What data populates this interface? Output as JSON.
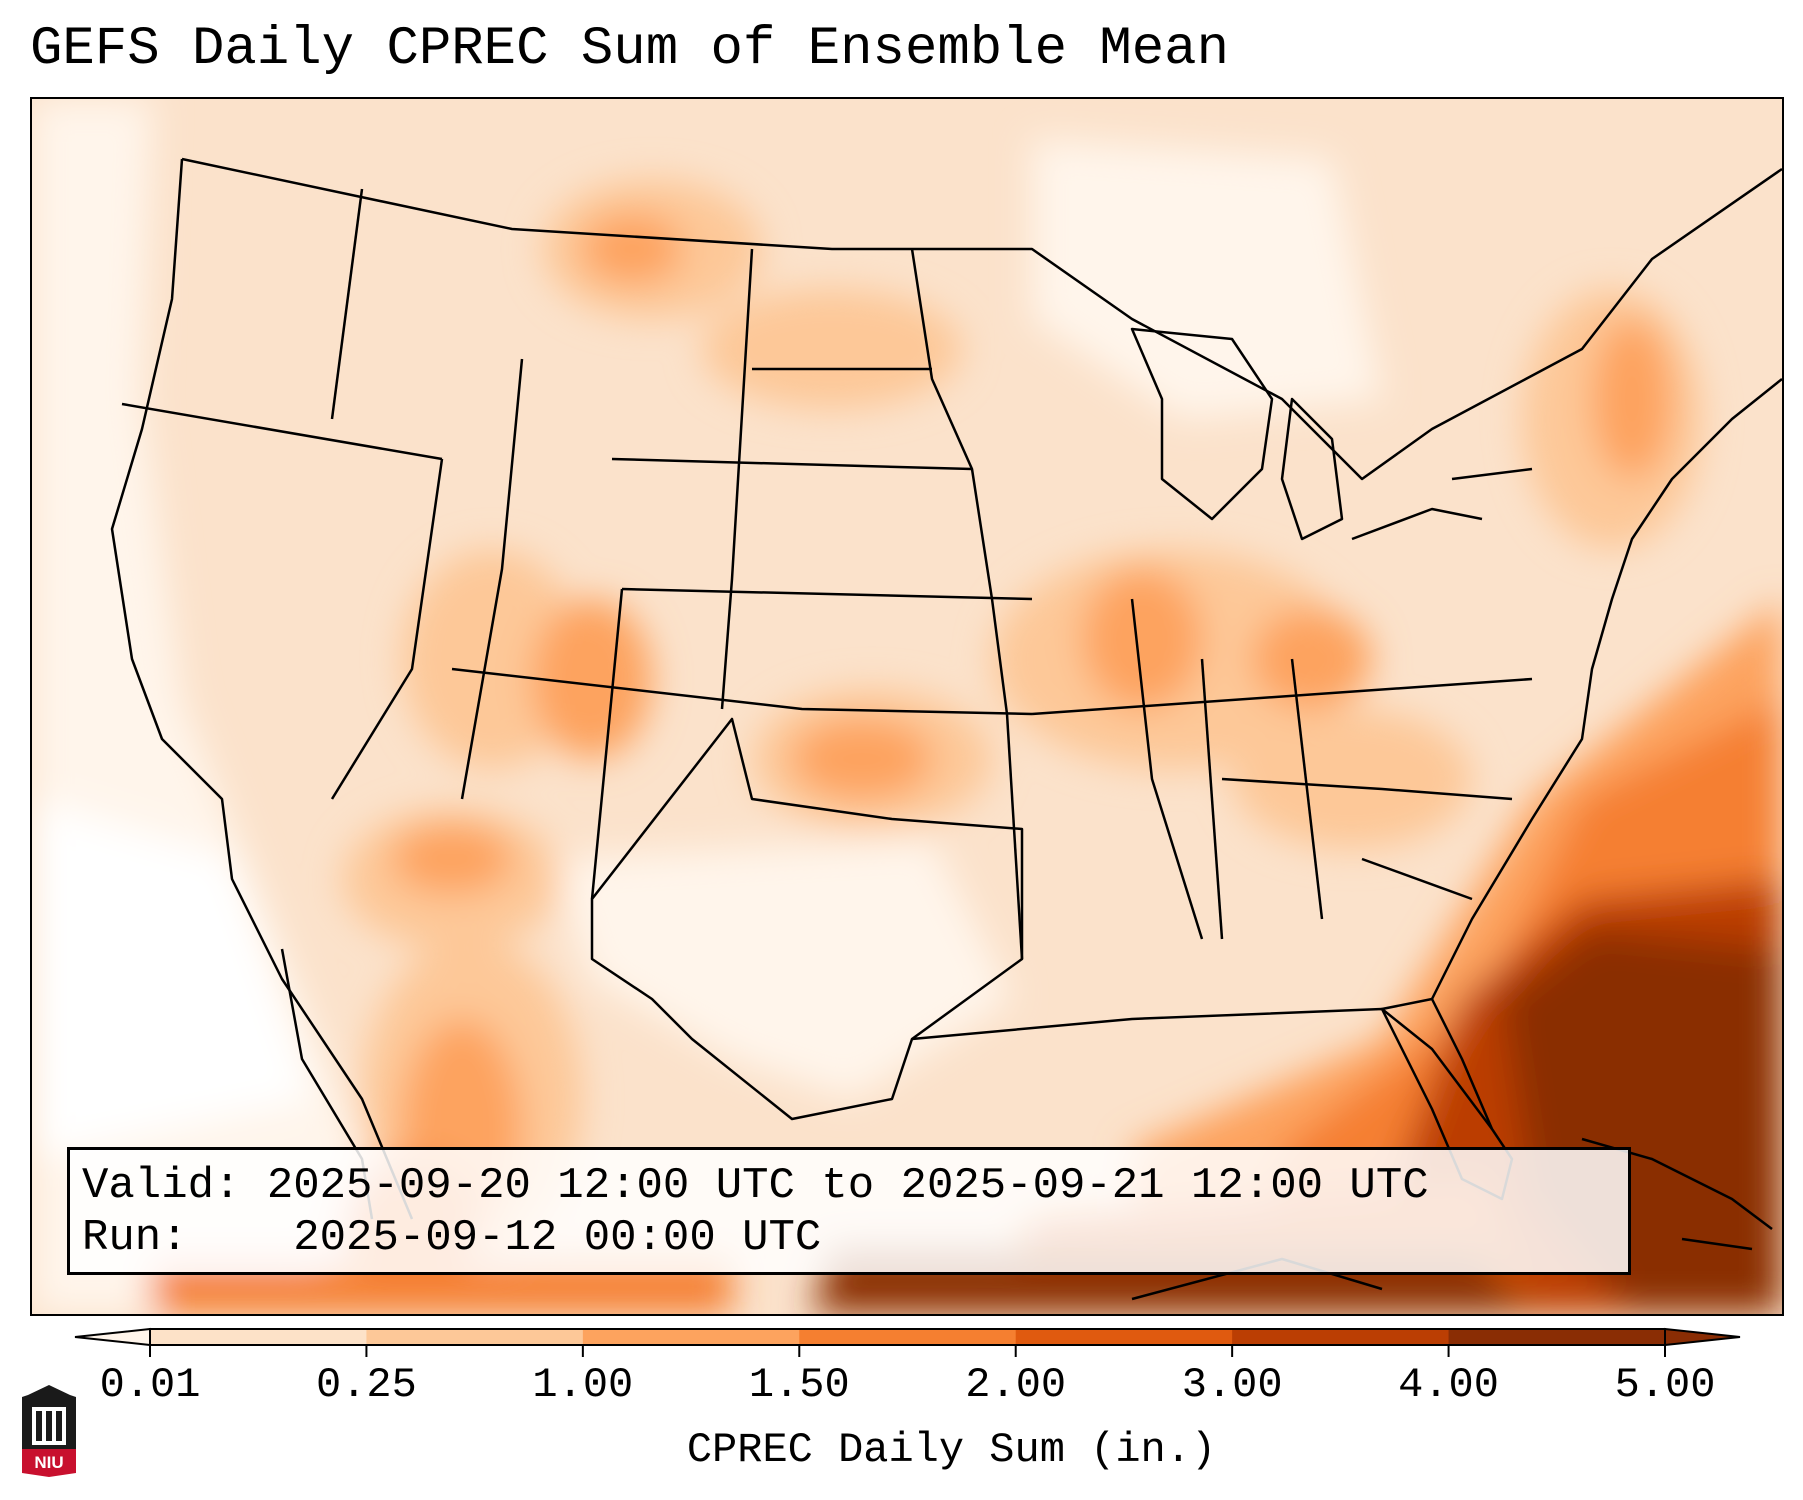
{
  "title": "GEFS Daily CPREC Sum of Ensemble Mean",
  "info": {
    "valid_label": "Valid:",
    "valid_value": "2025-09-20 12:00 UTC to 2025-09-21 12:00 UTC",
    "run_label": "Run:",
    "run_value": "2025-09-12 00:00 UTC"
  },
  "colorbar": {
    "label": "CPREC Daily Sum (in.)",
    "ticks": [
      "0.01",
      "0.25",
      "1.00",
      "1.50",
      "2.00",
      "3.00",
      "4.00",
      "5.00"
    ],
    "colors": [
      "#fff5eb",
      "#fde2c8",
      "#fdc898",
      "#fda35e",
      "#f57f30",
      "#e05a0f",
      "#bb3e03",
      "#8a2d04"
    ]
  },
  "logo": {
    "text": "NIU",
    "color": "#c8102e"
  }
}
